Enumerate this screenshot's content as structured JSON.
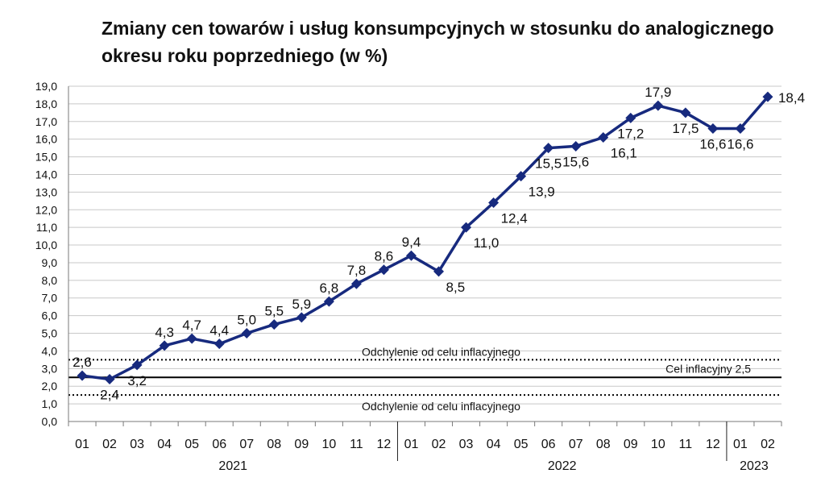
{
  "chart_data": {
    "type": "line",
    "title": "Zmiany cen towarów i usług konsumpcyjnych w stosunku do analogicznego okresu roku poprzedniego (w %)",
    "xlabel": "",
    "ylabel": "",
    "ylim": [
      0,
      19
    ],
    "ytick_step": 1,
    "grid": true,
    "x": [
      "01",
      "02",
      "03",
      "04",
      "05",
      "06",
      "07",
      "08",
      "09",
      "10",
      "11",
      "12",
      "01",
      "02",
      "03",
      "04",
      "05",
      "06",
      "07",
      "08",
      "09",
      "10",
      "11",
      "12",
      "01",
      "02"
    ],
    "year_groups": [
      {
        "label": "2021",
        "start": 0,
        "end": 11
      },
      {
        "label": "2022",
        "start": 12,
        "end": 23
      },
      {
        "label": "2023",
        "start": 24,
        "end": 25
      }
    ],
    "series": [
      {
        "values": [
          2.6,
          2.4,
          3.2,
          4.3,
          4.7,
          4.4,
          5.0,
          5.5,
          5.9,
          6.8,
          7.8,
          8.6,
          9.4,
          8.5,
          11.0,
          12.4,
          13.9,
          15.5,
          15.6,
          16.1,
          17.2,
          17.9,
          17.5,
          16.6,
          16.6,
          18.4
        ],
        "labels": [
          "2,6",
          "2,4",
          "3,2",
          "4,3",
          "4,7",
          "4,4",
          "5,0",
          "5,5",
          "5,9",
          "6,8",
          "7,8",
          "8,6",
          "9,4",
          "8,5",
          "11,0",
          "12,4",
          "13,9",
          "15,5",
          "15,6",
          "16,1",
          "17,2",
          "17,9",
          "17,5",
          "16,6",
          "16,6",
          "18,4"
        ],
        "label_pos": [
          "above",
          "below",
          "below",
          "above",
          "above",
          "above",
          "above",
          "above",
          "above",
          "above",
          "above",
          "above",
          "above",
          "right",
          "right",
          "right",
          "right",
          "below",
          "below",
          "right",
          "below",
          "above",
          "below",
          "below",
          "below",
          "right"
        ],
        "color": "#172a7e",
        "marker": "diamond"
      }
    ],
    "reference_lines": [
      {
        "y": 3.5,
        "style": "dotted",
        "label": "Odchylenie od celu inflacyjnego",
        "label_pos": "above-center"
      },
      {
        "y": 2.5,
        "style": "solid",
        "label": "Cel inflacyjny 2,5",
        "label_pos": "above-right"
      },
      {
        "y": 1.5,
        "style": "dotted",
        "label": "Odchylenie od celu inflacyjnego",
        "label_pos": "below-center"
      }
    ],
    "colors": {
      "line": "#172a7e",
      "grid": "#c8c8c8",
      "reference": "#000000"
    }
  }
}
